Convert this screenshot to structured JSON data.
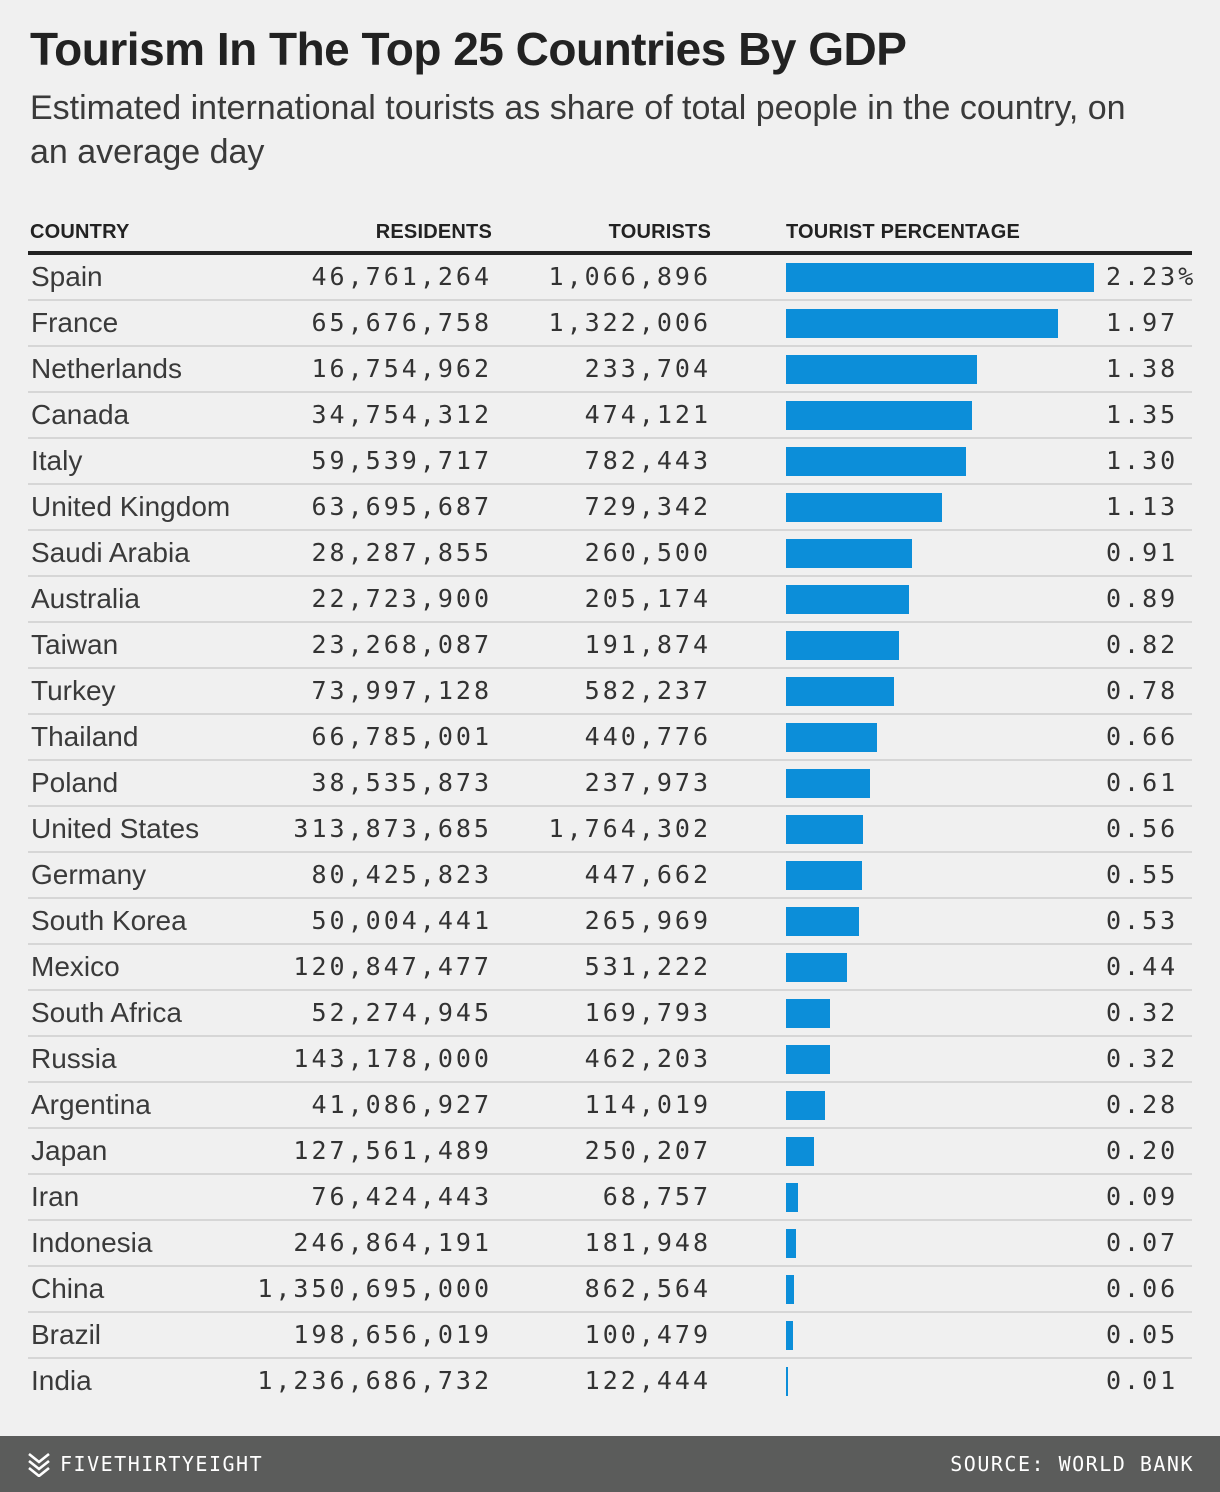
{
  "header": {
    "title": "Tourism In The Top 25 Countries By GDP",
    "subtitle": "Estimated international tourists as share of total people in the country, on an average day"
  },
  "columns": {
    "country": "COUNTRY",
    "residents": "RESIDENTS",
    "tourists": "TOURISTS",
    "tourist_percentage": "TOURIST PERCENTAGE"
  },
  "colors": {
    "bar": "#0c8ed9",
    "background": "#f0f0f0",
    "footer": "#5b5c5b"
  },
  "chart_data": {
    "type": "bar",
    "orientation": "horizontal",
    "title": "Tourism In The Top 25 Countries By GDP",
    "subtitle": "Estimated international tourists as share of total people in the country, on an average day",
    "value_label": "TOURIST PERCENTAGE",
    "unit_suffix_first_row": "%",
    "xlim": [
      0,
      2.23
    ],
    "rows": [
      {
        "country": "Spain",
        "residents": "46,761,264",
        "tourists": "1,066,896",
        "pct": 2.23,
        "pct_label": "2.23%"
      },
      {
        "country": "France",
        "residents": "65,676,758",
        "tourists": "1,322,006",
        "pct": 1.97,
        "pct_label": "1.97"
      },
      {
        "country": "Netherlands",
        "residents": "16,754,962",
        "tourists": "233,704",
        "pct": 1.38,
        "pct_label": "1.38"
      },
      {
        "country": "Canada",
        "residents": "34,754,312",
        "tourists": "474,121",
        "pct": 1.35,
        "pct_label": "1.35"
      },
      {
        "country": "Italy",
        "residents": "59,539,717",
        "tourists": "782,443",
        "pct": 1.3,
        "pct_label": "1.30"
      },
      {
        "country": "United Kingdom",
        "residents": "63,695,687",
        "tourists": "729,342",
        "pct": 1.13,
        "pct_label": "1.13"
      },
      {
        "country": "Saudi Arabia",
        "residents": "28,287,855",
        "tourists": "260,500",
        "pct": 0.91,
        "pct_label": "0.91"
      },
      {
        "country": "Australia",
        "residents": "22,723,900",
        "tourists": "205,174",
        "pct": 0.89,
        "pct_label": "0.89"
      },
      {
        "country": "Taiwan",
        "residents": "23,268,087",
        "tourists": "191,874",
        "pct": 0.82,
        "pct_label": "0.82"
      },
      {
        "country": "Turkey",
        "residents": "73,997,128",
        "tourists": "582,237",
        "pct": 0.78,
        "pct_label": "0.78"
      },
      {
        "country": "Thailand",
        "residents": "66,785,001",
        "tourists": "440,776",
        "pct": 0.66,
        "pct_label": "0.66"
      },
      {
        "country": "Poland",
        "residents": "38,535,873",
        "tourists": "237,973",
        "pct": 0.61,
        "pct_label": "0.61"
      },
      {
        "country": "United States",
        "residents": "313,873,685",
        "tourists": "1,764,302",
        "pct": 0.56,
        "pct_label": "0.56"
      },
      {
        "country": "Germany",
        "residents": "80,425,823",
        "tourists": "447,662",
        "pct": 0.55,
        "pct_label": "0.55"
      },
      {
        "country": "South Korea",
        "residents": "50,004,441",
        "tourists": "265,969",
        "pct": 0.53,
        "pct_label": "0.53"
      },
      {
        "country": "Mexico",
        "residents": "120,847,477",
        "tourists": "531,222",
        "pct": 0.44,
        "pct_label": "0.44"
      },
      {
        "country": "South Africa",
        "residents": "52,274,945",
        "tourists": "169,793",
        "pct": 0.32,
        "pct_label": "0.32"
      },
      {
        "country": "Russia",
        "residents": "143,178,000",
        "tourists": "462,203",
        "pct": 0.32,
        "pct_label": "0.32"
      },
      {
        "country": "Argentina",
        "residents": "41,086,927",
        "tourists": "114,019",
        "pct": 0.28,
        "pct_label": "0.28"
      },
      {
        "country": "Japan",
        "residents": "127,561,489",
        "tourists": "250,207",
        "pct": 0.2,
        "pct_label": "0.20"
      },
      {
        "country": "Iran",
        "residents": "76,424,443",
        "tourists": "68,757",
        "pct": 0.09,
        "pct_label": "0.09"
      },
      {
        "country": "Indonesia",
        "residents": "246,864,191",
        "tourists": "181,948",
        "pct": 0.07,
        "pct_label": "0.07"
      },
      {
        "country": "China",
        "residents": "1,350,695,000",
        "tourists": "862,564",
        "pct": 0.06,
        "pct_label": "0.06"
      },
      {
        "country": "Brazil",
        "residents": "198,656,019",
        "tourists": "100,479",
        "pct": 0.05,
        "pct_label": "0.05"
      },
      {
        "country": "India",
        "residents": "1,236,686,732",
        "tourists": "122,444",
        "pct": 0.01,
        "pct_label": "0.01"
      }
    ]
  },
  "footer": {
    "brand": "FIVETHIRTYEIGHT",
    "brand_icon": "fivethirtyeight-logo-icon",
    "source": "SOURCE: WORLD BANK"
  }
}
